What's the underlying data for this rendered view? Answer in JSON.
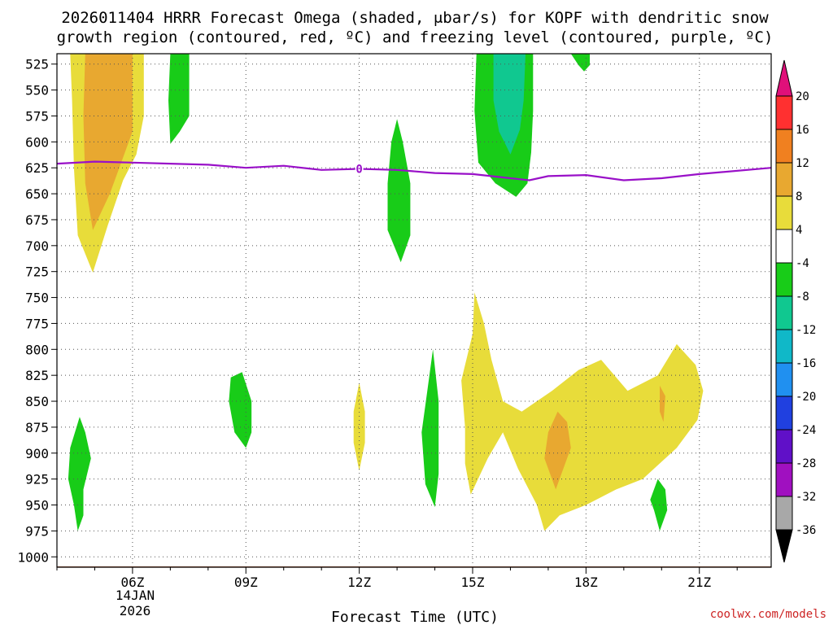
{
  "title": {
    "line1": "2026011404 HRRR Forecast Omega (shaded, μbar/s) for KOPF with dendritic snow",
    "line2": "growth region (contoured, red, ºC) and freezing level (contoured, purple, ºC)"
  },
  "xlabel": "Forecast Time (UTC)",
  "watermark": "coolwx.com/models",
  "date_label": {
    "line1": "14JAN",
    "line2": "2026"
  },
  "chart_data": {
    "type": "heatmap",
    "title": "2026011404 HRRR Forecast Omega (shaded, μbar/s) for KOPF with dendritic snow growth region (contoured, red, ºC) and freezing level (contoured, purple, ºC)",
    "xlabel": "Forecast Time (UTC)",
    "ylabel": "",
    "x_range": [
      4,
      22.9
    ],
    "y_range": [
      1010,
      515
    ],
    "y_axis": "pressure (hPa), inverted",
    "grid": true,
    "x_ticks": [
      {
        "x": 6,
        "label": "06Z"
      },
      {
        "x": 9,
        "label": "09Z"
      },
      {
        "x": 12,
        "label": "12Z"
      },
      {
        "x": 15,
        "label": "15Z"
      },
      {
        "x": 18,
        "label": "18Z"
      },
      {
        "x": 21,
        "label": "21Z"
      }
    ],
    "x_minor": [
      4,
      5,
      7,
      8,
      10,
      11,
      13,
      14,
      16,
      17,
      19,
      20,
      22
    ],
    "y_ticks": [
      525,
      550,
      575,
      600,
      625,
      650,
      675,
      700,
      725,
      750,
      775,
      800,
      825,
      850,
      875,
      900,
      925,
      950,
      975,
      1000
    ],
    "colorbar": {
      "labels": [
        "20",
        "16",
        "12",
        "8",
        "4",
        "-4",
        "-8",
        "-12",
        "-16",
        "-20",
        "-24",
        "-28",
        "-32",
        "-36"
      ],
      "bands": [
        {
          "lo": 16,
          "hi": 20,
          "color": "#ff3030"
        },
        {
          "lo": 12,
          "hi": 16,
          "color": "#f08020"
        },
        {
          "lo": 8,
          "hi": 12,
          "color": "#e8a830"
        },
        {
          "lo": 4,
          "hi": 8,
          "color": "#e8dc3a"
        },
        {
          "lo": -4,
          "hi": 4,
          "color": "#ffffff"
        },
        {
          "lo": -8,
          "hi": -4,
          "color": "#18cc18"
        },
        {
          "lo": -12,
          "hi": -8,
          "color": "#10c890"
        },
        {
          "lo": -16,
          "hi": -12,
          "color": "#10b8c8"
        },
        {
          "lo": -20,
          "hi": -16,
          "color": "#2090f0"
        },
        {
          "lo": -24,
          "hi": -20,
          "color": "#2040e0"
        },
        {
          "lo": -28,
          "hi": -24,
          "color": "#6010c8"
        },
        {
          "lo": -32,
          "hi": -28,
          "color": "#a010c0"
        },
        {
          "lo": -36,
          "hi": -32,
          "color": "#a8a8a8"
        }
      ],
      "over_color": "#e0107a",
      "under_color": "#000000"
    },
    "freezing_level": {
      "color": "#9910c8",
      "contour_label": "0",
      "points": [
        [
          4.0,
          621
        ],
        [
          5.0,
          619
        ],
        [
          6.0,
          620
        ],
        [
          7.0,
          621
        ],
        [
          8.0,
          622
        ],
        [
          9.0,
          625
        ],
        [
          10.0,
          623
        ],
        [
          11.0,
          627
        ],
        [
          12.0,
          626
        ],
        [
          13.0,
          627
        ],
        [
          14.0,
          630
        ],
        [
          15.0,
          631
        ],
        [
          16.0,
          635
        ],
        [
          16.5,
          637
        ],
        [
          17.0,
          633
        ],
        [
          18.0,
          632
        ],
        [
          19.0,
          637
        ],
        [
          20.0,
          635
        ],
        [
          21.0,
          631
        ],
        [
          22.9,
          625
        ]
      ]
    },
    "ground": {
      "color": "#a0522d",
      "pressure": 1010
    },
    "omega_regions": [
      {
        "name": "upward-yellow-early",
        "color": "#e8dc3a",
        "points": [
          [
            4.35,
            515
          ],
          [
            5.3,
            515
          ],
          [
            5.95,
            515
          ],
          [
            6.3,
            515
          ],
          [
            6.3,
            575
          ],
          [
            6.1,
            612
          ],
          [
            5.75,
            637
          ],
          [
            5.35,
            680
          ],
          [
            4.95,
            726
          ],
          [
            4.55,
            690
          ],
          [
            4.45,
            625
          ],
          [
            4.4,
            560
          ]
        ]
      },
      {
        "name": "upward-orange-early",
        "color": "#e8a830",
        "points": [
          [
            4.75,
            515
          ],
          [
            5.25,
            515
          ],
          [
            6.0,
            515
          ],
          [
            6.0,
            590
          ],
          [
            5.75,
            615
          ],
          [
            5.4,
            650
          ],
          [
            4.95,
            685
          ],
          [
            4.75,
            640
          ],
          [
            4.7,
            575
          ]
        ]
      },
      {
        "name": "sinking-green-0730",
        "color": "#18cc18",
        "points": [
          [
            7.0,
            515
          ],
          [
            7.5,
            515
          ],
          [
            7.5,
            575
          ],
          [
            7.25,
            590
          ],
          [
            7.0,
            602
          ],
          [
            6.95,
            560
          ]
        ]
      },
      {
        "name": "sinking-green-1300",
        "color": "#18cc18",
        "points": [
          [
            13.0,
            578
          ],
          [
            13.15,
            600
          ],
          [
            13.35,
            640
          ],
          [
            13.35,
            690
          ],
          [
            13.1,
            716
          ],
          [
            12.75,
            685
          ],
          [
            12.75,
            640
          ],
          [
            12.85,
            600
          ]
        ]
      },
      {
        "name": "sinking-green-1600",
        "color": "#18cc18",
        "points": [
          [
            15.1,
            515
          ],
          [
            16.6,
            515
          ],
          [
            16.6,
            570
          ],
          [
            16.55,
            610
          ],
          [
            16.45,
            640
          ],
          [
            16.15,
            653
          ],
          [
            15.6,
            640
          ],
          [
            15.15,
            620
          ],
          [
            15.05,
            570
          ]
        ]
      },
      {
        "name": "sinking-teal-1600",
        "color": "#10c890",
        "points": [
          [
            15.55,
            515
          ],
          [
            16.4,
            515
          ],
          [
            16.35,
            560
          ],
          [
            16.25,
            588
          ],
          [
            16.0,
            612
          ],
          [
            15.7,
            590
          ],
          [
            15.55,
            560
          ]
        ]
      },
      {
        "name": "sinking-green-1800",
        "color": "#18cc18",
        "points": [
          [
            17.6,
            515
          ],
          [
            18.1,
            515
          ],
          [
            18.1,
            526
          ],
          [
            17.95,
            532
          ],
          [
            17.8,
            526
          ]
        ]
      },
      {
        "name": "upward-yellow-1500",
        "color": "#e8dc3a",
        "points": [
          [
            15.0,
            785
          ],
          [
            14.7,
            830
          ],
          [
            14.8,
            875
          ],
          [
            14.8,
            910
          ],
          [
            14.95,
            940
          ],
          [
            15.4,
            905
          ],
          [
            15.8,
            880
          ],
          [
            16.2,
            915
          ],
          [
            16.7,
            950
          ],
          [
            16.9,
            975
          ],
          [
            17.3,
            960
          ],
          [
            18.0,
            950
          ],
          [
            18.8,
            935
          ],
          [
            19.5,
            925
          ],
          [
            20.4,
            895
          ],
          [
            20.95,
            868
          ],
          [
            21.1,
            840
          ],
          [
            20.9,
            815
          ],
          [
            20.4,
            795
          ],
          [
            19.9,
            825
          ],
          [
            19.1,
            840
          ],
          [
            18.4,
            810
          ],
          [
            17.8,
            820
          ],
          [
            17.1,
            840
          ],
          [
            16.3,
            860
          ],
          [
            15.8,
            850
          ],
          [
            15.5,
            810
          ],
          [
            15.3,
            775
          ],
          [
            15.05,
            745
          ]
        ]
      },
      {
        "name": "upward-orange-1730",
        "color": "#e8a830",
        "points": [
          [
            17.25,
            860
          ],
          [
            17.0,
            880
          ],
          [
            16.9,
            905
          ],
          [
            17.2,
            935
          ],
          [
            17.4,
            915
          ],
          [
            17.6,
            895
          ],
          [
            17.5,
            870
          ]
        ]
      },
      {
        "name": "upward-orange-2000",
        "color": "#e8a830",
        "points": [
          [
            19.95,
            835
          ],
          [
            20.1,
            845
          ],
          [
            20.05,
            870
          ],
          [
            19.95,
            860
          ]
        ]
      },
      {
        "name": "sinking-green-0500",
        "color": "#18cc18",
        "points": [
          [
            4.6,
            865
          ],
          [
            4.35,
            895
          ],
          [
            4.3,
            925
          ],
          [
            4.45,
            950
          ],
          [
            4.55,
            975
          ],
          [
            4.7,
            960
          ],
          [
            4.7,
            935
          ],
          [
            4.9,
            905
          ],
          [
            4.75,
            880
          ]
        ]
      },
      {
        "name": "sinking-green-0900",
        "color": "#18cc18",
        "points": [
          [
            8.6,
            827
          ],
          [
            8.9,
            822
          ],
          [
            9.15,
            850
          ],
          [
            9.15,
            880
          ],
          [
            9.0,
            895
          ],
          [
            8.7,
            880
          ],
          [
            8.55,
            850
          ]
        ]
      },
      {
        "name": "upward-yellow-1200",
        "color": "#e8dc3a",
        "points": [
          [
            12.0,
            832
          ],
          [
            12.15,
            860
          ],
          [
            12.15,
            890
          ],
          [
            12.0,
            917
          ],
          [
            11.85,
            890
          ],
          [
            11.85,
            860
          ]
        ]
      },
      {
        "name": "sinking-green-1400",
        "color": "#18cc18",
        "points": [
          [
            13.95,
            800
          ],
          [
            14.1,
            850
          ],
          [
            14.1,
            920
          ],
          [
            14.0,
            952
          ],
          [
            13.75,
            930
          ],
          [
            13.65,
            880
          ],
          [
            13.8,
            840
          ]
        ]
      },
      {
        "name": "sinking-green-2000",
        "color": "#18cc18",
        "points": [
          [
            19.9,
            925
          ],
          [
            20.1,
            935
          ],
          [
            20.15,
            955
          ],
          [
            19.95,
            975
          ],
          [
            19.8,
            955
          ],
          [
            19.7,
            945
          ]
        ]
      }
    ]
  }
}
